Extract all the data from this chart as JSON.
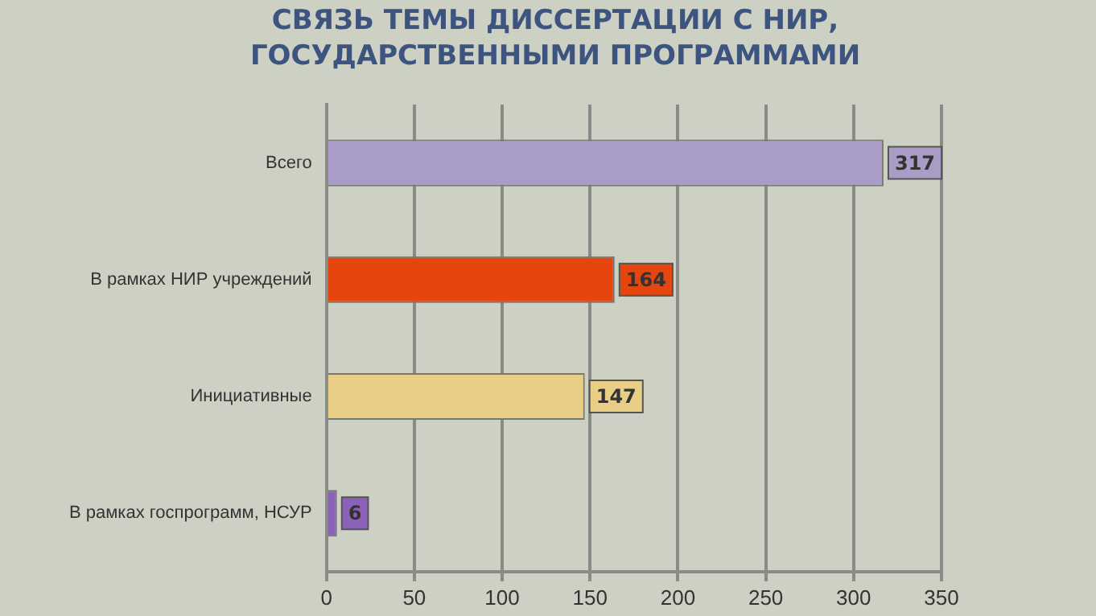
{
  "chart_data": {
    "type": "bar",
    "orientation": "horizontal",
    "title": "СВЯЗЬ ТЕМЫ ДИССЕРТАЦИИ С НИР, ГОСУДАРСТВЕННЫМИ ПРОГРАММАМИ",
    "categories": [
      "Всего",
      "В рамках НИР учреждений",
      "Инициативные",
      "В рамках госпрограмм, НСУР"
    ],
    "values": [
      317,
      164,
      147,
      6
    ],
    "colors": [
      "#a99cc6",
      "#e6460e",
      "#e9cf85",
      "#8c62b8"
    ],
    "xlim": [
      0,
      350
    ],
    "xticks": [
      0,
      50,
      100,
      150,
      200,
      250,
      300,
      350
    ],
    "grid": "x",
    "data_labels": true,
    "legend": false
  }
}
